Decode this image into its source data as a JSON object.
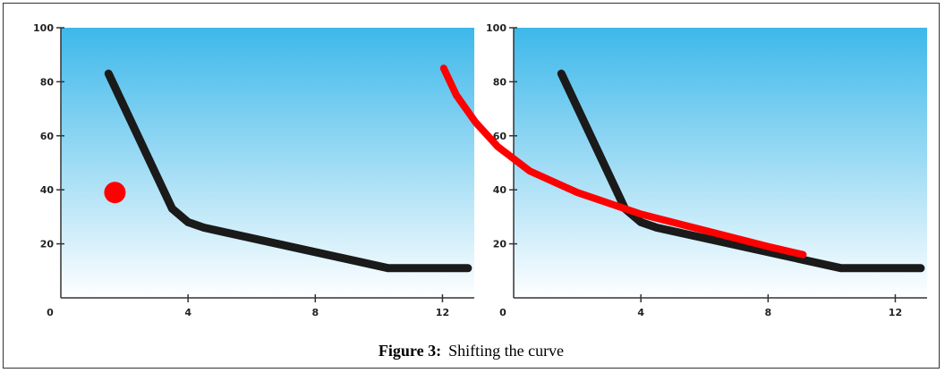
{
  "colors": {
    "gradient_top": "#3db8ea",
    "gradient_bottom": "#ffffff",
    "curve": "#1a1a1a",
    "overlay": "#ff0000",
    "axis": "#333333"
  },
  "caption": {
    "label": "Figure 3:",
    "text": "Shifting the curve"
  },
  "chart_data": [
    {
      "type": "line",
      "title": "",
      "xlabel": "",
      "ylabel": "",
      "xlim": [
        0,
        13
      ],
      "ylim": [
        0,
        100
      ],
      "x_ticks": [
        4,
        8,
        12
      ],
      "y_ticks": [
        20,
        40,
        60,
        80,
        100
      ],
      "origin_label": "0",
      "grid": false,
      "series": [
        {
          "x": [
            1.5,
            3.5,
            4.0,
            4.5,
            10.3,
            12.8
          ],
          "y": [
            83,
            33,
            28,
            26,
            11,
            11
          ]
        }
      ],
      "markers": [
        {
          "x": 1.7,
          "y": 39
        }
      ]
    },
    {
      "type": "line",
      "title": "",
      "xlabel": "",
      "ylabel": "",
      "xlim": [
        0,
        13
      ],
      "ylim": [
        0,
        100
      ],
      "x_ticks": [
        4,
        8,
        12
      ],
      "y_ticks": [
        20,
        40,
        60,
        80,
        100
      ],
      "origin_label": "0",
      "grid": false,
      "series": [
        {
          "x": [
            1.5,
            3.5,
            4.0,
            4.5,
            10.3,
            12.8
          ],
          "y": [
            83,
            33,
            28,
            26,
            11,
            11
          ]
        },
        {
          "x": [
            -2.2,
            -1.8,
            -1.2,
            -0.5,
            0.5,
            2.0,
            4.0,
            6.0,
            8.0,
            9.1
          ],
          "y": [
            85,
            75,
            65,
            56,
            47,
            39,
            31,
            25,
            19,
            16
          ]
        }
      ]
    }
  ]
}
